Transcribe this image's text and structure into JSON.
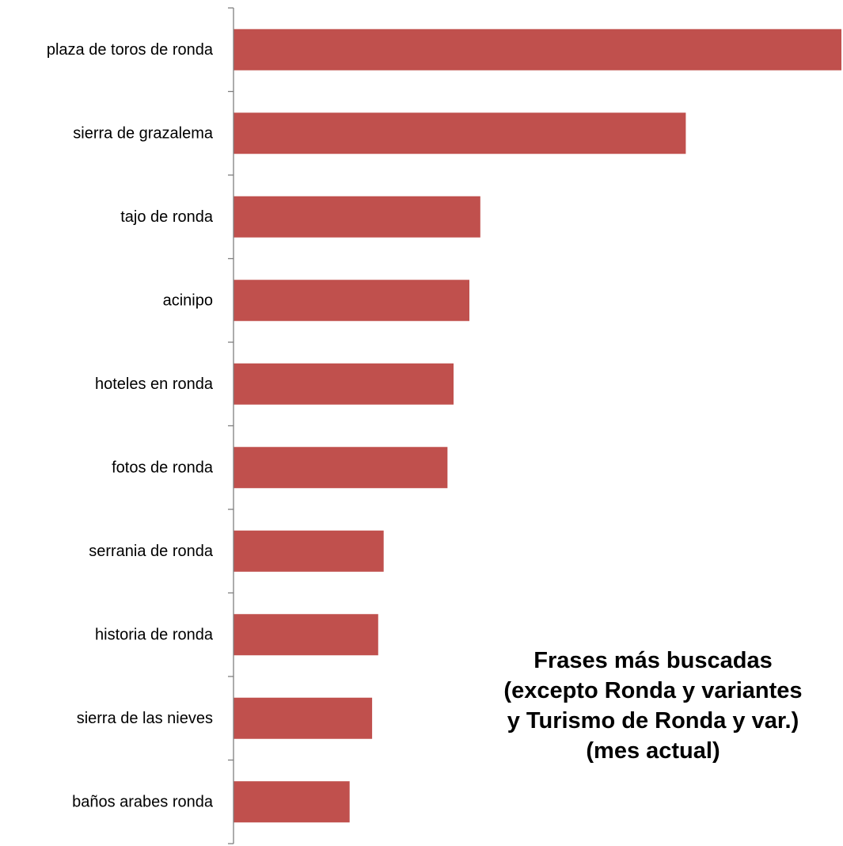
{
  "chart_data": {
    "type": "bar",
    "orientation": "horizontal",
    "categories": [
      "plaza de toros de ronda",
      "sierra de grazalema",
      "tajo de ronda",
      "acinipo",
      "hoteles en ronda",
      "fotos de ronda",
      "serrania de ronda",
      "historia de ronda",
      "sierra de las nieves",
      "baños arabes ronda"
    ],
    "values": [
      100,
      74.4,
      40.6,
      38.8,
      36.2,
      35.2,
      24.7,
      23.8,
      22.8,
      19.1
    ],
    "xlim": [
      0,
      100
    ],
    "title_lines": [
      "Frases más buscadas",
      "(excepto Ronda y variantes",
      "y Turismo de Ronda y var.)",
      "(mes actual)"
    ],
    "legend": "none",
    "grid": false,
    "colors": {
      "bar": "#C0504D",
      "axis": "#7F7F7F",
      "text": "#000000"
    }
  }
}
